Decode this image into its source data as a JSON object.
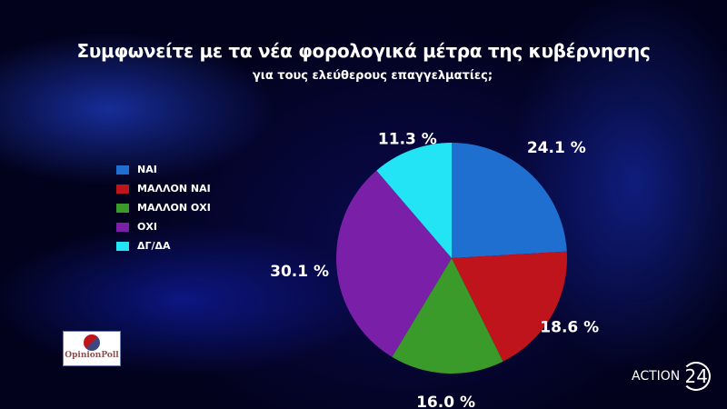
{
  "chart_data": {
    "type": "pie",
    "title": "Συμφωνείτε με τα νέα φορολογικά μέτρα της κυβέρνησης",
    "subtitle": "για τους ελεύθερους επαγγελματίες;",
    "legend_position": "left",
    "categories": [
      "ΝΑΙ",
      "ΜΑΛΛΟΝ ΝΑΙ",
      "ΜΑΛΛΟΝ ΟΧΙ",
      "ΟΧΙ",
      "ΔΓ/ΔΑ"
    ],
    "values": [
      24.1,
      18.6,
      16.0,
      30.1,
      11.3
    ],
    "data_labels": [
      "24.1 %",
      "18.6 %",
      "16.0 %",
      "30.1 %",
      "11.3 %"
    ],
    "colors": [
      "#1f6fd0",
      "#c0141c",
      "#3a9a2a",
      "#7a1fa8",
      "#22e4f4"
    ]
  },
  "logos": {
    "pollster": "OpinionPoll",
    "channel": "ACTION",
    "channel_number": "24"
  }
}
